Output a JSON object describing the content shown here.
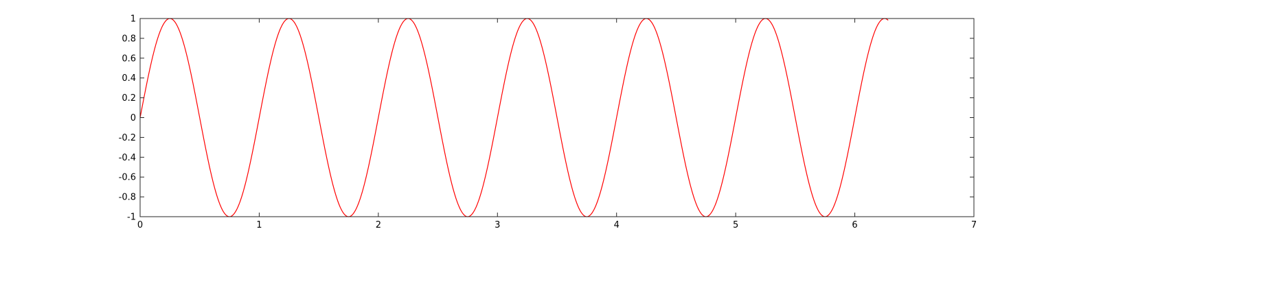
{
  "chart_data": {
    "type": "line",
    "title": "",
    "xlabel": "",
    "ylabel": "",
    "xlim": [
      0,
      7
    ],
    "ylim": [
      -1,
      1
    ],
    "x_ticks": [
      0,
      1,
      2,
      3,
      4,
      5,
      6,
      7
    ],
    "x_tick_labels": [
      "0",
      "1",
      "2",
      "3",
      "4",
      "5",
      "6",
      "7"
    ],
    "y_ticks": [
      1,
      0.8,
      0.6,
      0.4,
      0.2,
      0,
      -0.2,
      -0.4,
      -0.6,
      -0.8,
      -1
    ],
    "y_tick_labels": [
      "1",
      "0.8",
      "0.6",
      "0.4",
      "0.2",
      "0",
      "-0.2",
      "-0.4",
      "-0.6",
      "-0.8",
      "-1"
    ],
    "grid": false,
    "box": true,
    "series": [
      {
        "color": "#ff0000",
        "x": [
          0,
          0.125,
          0.25,
          0.375,
          0.5,
          0.625,
          0.75,
          0.875,
          1,
          1.125,
          1.25,
          1.375,
          1.5,
          1.625,
          1.75,
          1.875,
          2,
          2.125,
          2.25,
          2.375,
          2.5,
          2.625,
          2.75,
          2.875,
          3,
          3.125,
          3.25,
          3.375,
          3.5,
          3.625,
          3.75,
          3.875,
          4,
          4.125,
          4.25,
          4.375,
          4.5,
          4.625,
          4.75,
          4.875,
          5,
          5.125,
          5.25,
          5.375,
          5.5,
          5.625,
          5.75,
          5.875,
          6,
          6.125,
          6.25,
          6.28
        ],
        "y": [
          0,
          0.71,
          1,
          0.71,
          0,
          -0.71,
          -1,
          -0.71,
          0,
          0.71,
          1,
          0.71,
          0,
          -0.71,
          -1,
          -0.71,
          0,
          0.71,
          1,
          0.71,
          0,
          -0.71,
          -1,
          -0.71,
          0,
          0.71,
          1,
          0.71,
          0,
          -0.71,
          -1,
          -0.71,
          0,
          0.71,
          1,
          0.71,
          0,
          -0.71,
          -1,
          -0.71,
          0,
          0.71,
          1,
          0.71,
          0,
          -0.71,
          -1,
          -0.71,
          0,
          0.71,
          1,
          0.99
        ]
      }
    ]
  }
}
